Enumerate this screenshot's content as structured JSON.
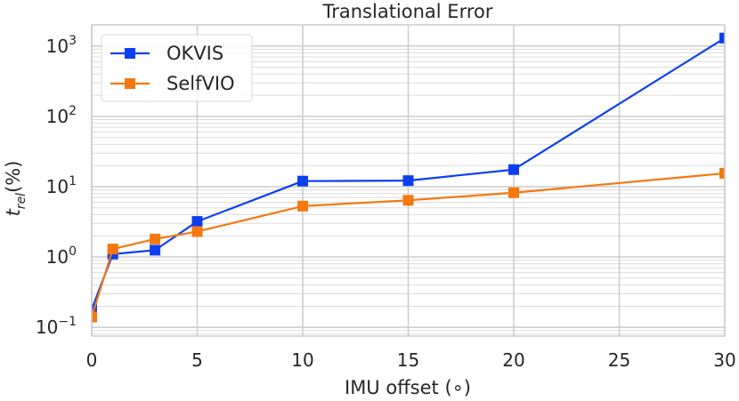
{
  "chart_data": {
    "type": "line",
    "title": "Translational Error",
    "xlabel": "IMU offset (∘)",
    "ylabel_base": "t",
    "ylabel_sub": "rel",
    "ylabel_suffix": "(%)",
    "xlim": [
      0,
      30
    ],
    "ylim": [
      0.075,
      2000
    ],
    "yscale": "log",
    "grid": true,
    "legend_placement": "top-left",
    "x_ticks": [
      0,
      5,
      10,
      15,
      20,
      25,
      30
    ],
    "y_ticks": [
      {
        "value": 0.1,
        "base": "10",
        "exp": "−1"
      },
      {
        "value": 1,
        "base": "10",
        "exp": "0"
      },
      {
        "value": 10,
        "base": "10",
        "exp": "1"
      },
      {
        "value": 100,
        "base": "10",
        "exp": "2"
      },
      {
        "value": 1000,
        "base": "10",
        "exp": "3"
      }
    ],
    "series": [
      {
        "name": "OKVIS",
        "color": "#0c3ff2",
        "x": [
          0,
          1,
          3,
          5,
          10,
          15,
          20,
          30
        ],
        "y": [
          0.18,
          1.1,
          1.25,
          3.2,
          12,
          12.2,
          17.5,
          1300
        ]
      },
      {
        "name": "SelfVIO",
        "color": "#f5780f",
        "x": [
          0,
          1,
          3,
          5,
          10,
          15,
          20,
          30
        ],
        "y": [
          0.14,
          1.3,
          1.8,
          2.3,
          5.3,
          6.4,
          8.2,
          15.5
        ]
      }
    ]
  }
}
